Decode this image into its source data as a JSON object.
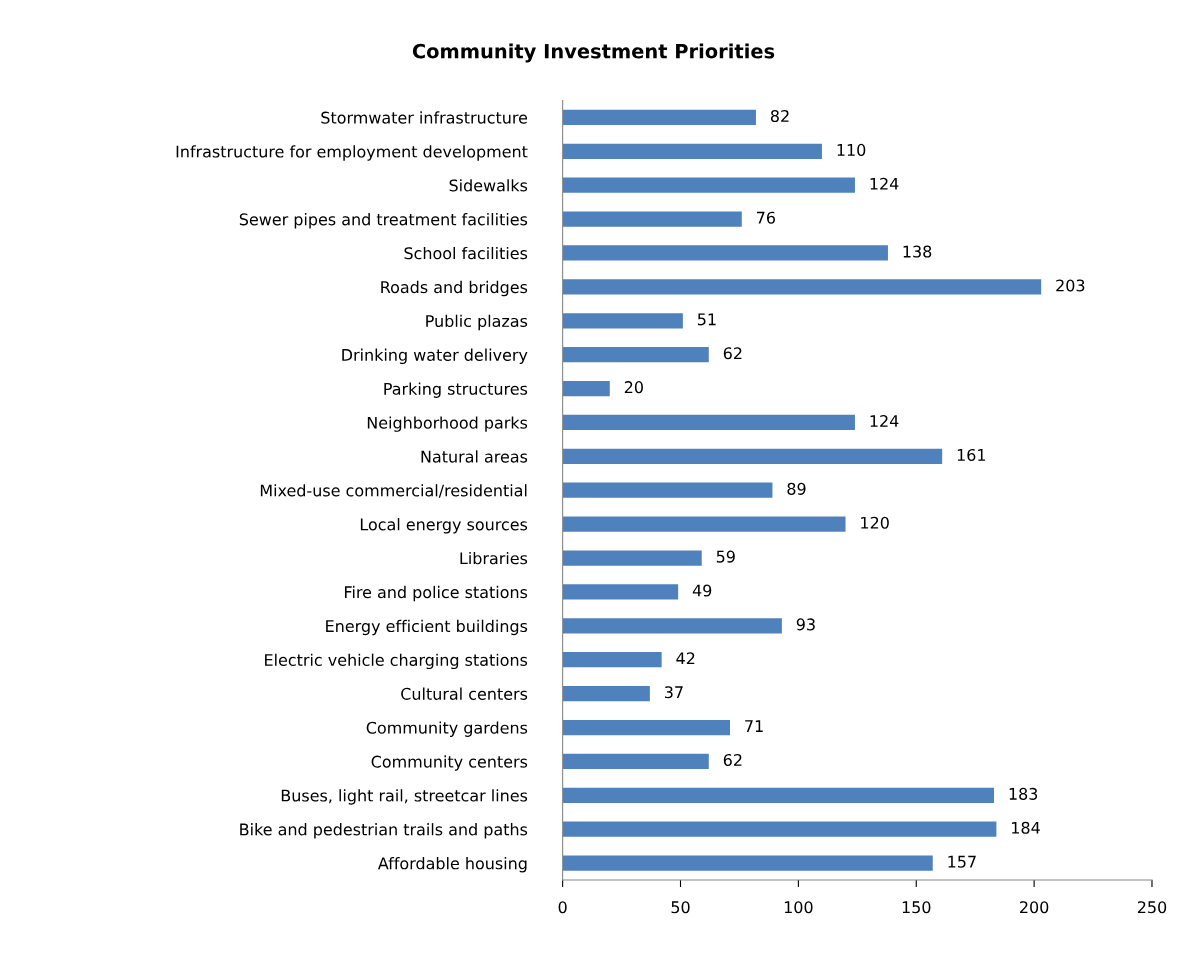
{
  "chart_data": {
    "type": "bar",
    "orientation": "horizontal",
    "title": "Community Investment Priorities",
    "categories": [
      "Stormwater infrastructure",
      "Infrastructure for employment development",
      "Sidewalks",
      "Sewer pipes and treatment facilities",
      "School facilities",
      "Roads and bridges",
      "Public plazas",
      "Drinking water delivery",
      "Parking structures",
      "Neighborhood parks",
      "Natural areas",
      "Mixed-use commercial/residential",
      "Local energy sources",
      "Libraries",
      "Fire and police stations",
      "Energy efficient buildings",
      "Electric vehicle charging stations",
      "Cultural centers",
      "Community gardens",
      "Community centers",
      "Buses, light rail, streetcar lines",
      "Bike and pedestrian trails and paths",
      "Affordable housing"
    ],
    "values": [
      82,
      110,
      124,
      76,
      138,
      203,
      51,
      62,
      20,
      124,
      161,
      89,
      120,
      59,
      49,
      93,
      42,
      37,
      71,
      62,
      183,
      184,
      157
    ],
    "color": "#4f81bd",
    "data_labels": true,
    "xlim": [
      0,
      250
    ],
    "xticks": [
      0,
      50,
      100,
      150,
      200,
      250
    ],
    "grid": false,
    "legend": false
  }
}
